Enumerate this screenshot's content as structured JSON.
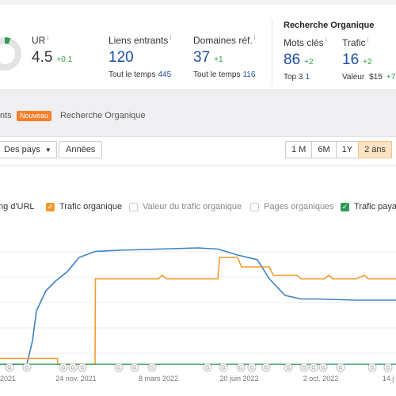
{
  "metrics": {
    "ur": {
      "label": "UR",
      "info": "i",
      "value": "4.5",
      "delta": "+0.1"
    },
    "backlinks": {
      "label": "Liens entrants",
      "info": "i",
      "value": "120",
      "sub_label": "Tout le temps",
      "sub_value": "445"
    },
    "ref_domains": {
      "label": "Domaines réf.",
      "info": "i",
      "value": "37",
      "delta": "+1",
      "sub_label": "Tout le temps",
      "sub_value": "116"
    },
    "organic_title": "Recherche Organique",
    "keywords": {
      "label": "Mots clés",
      "info": "i",
      "value": "86",
      "delta": "+2",
      "sub_label": "Top 3",
      "sub_value": "1"
    },
    "traffic": {
      "label": "Trafic",
      "info": "i",
      "value": "16",
      "delta": "+2",
      "sub_label": "Valeur",
      "sub_value": "$15",
      "sub_delta": "+7"
    }
  },
  "tabs": [
    {
      "label": "nts",
      "badge": "Nouveau"
    },
    {
      "label": "Recherche Organique"
    }
  ],
  "controls": {
    "country_select": "Des pays",
    "years_button": "Années",
    "ranges": [
      "1 M",
      "6M",
      "1Y",
      "2 ans"
    ],
    "active_range": "2 ans"
  },
  "legend": [
    {
      "label": "ng d'URL",
      "checked": null
    },
    {
      "label": "Trafic organique",
      "checked": true,
      "color": "#f39a2f"
    },
    {
      "label": "Valeur du trafic organique",
      "checked": false
    },
    {
      "label": "Pages organiques",
      "checked": false
    },
    {
      "label": "Trafic paya",
      "checked": true,
      "color": "#2e9b55"
    }
  ],
  "chart_data": {
    "type": "line",
    "x_tick_labels": [
      "2021",
      "24 nov. 2021",
      "8 mars 2022",
      "20 juin 2022",
      "2 oct. 2022",
      "14 j"
    ],
    "annotation_markers": [
      "G",
      "G",
      "G",
      "G",
      "G",
      "G",
      "G",
      "G",
      "G",
      "G",
      "G",
      "G",
      "G",
      "G",
      "G",
      "G",
      "G",
      "G",
      "G",
      "G"
    ],
    "colors": {
      "ur": "#3b82c4",
      "organic": "#f39a2f",
      "paid": "#2e9b55"
    },
    "series": [
      {
        "name": "ng d'URL",
        "color": "#3b82c4",
        "points": [
          [
            0,
            0
          ],
          [
            0.034,
            0
          ],
          [
            0.068,
            0
          ],
          [
            0.082,
            0.2
          ],
          [
            0.092,
            0.45
          ],
          [
            0.116,
            0.62
          ],
          [
            0.14,
            0.7
          ],
          [
            0.17,
            0.78
          ],
          [
            0.2,
            0.9
          ],
          [
            0.24,
            0.95
          ],
          [
            0.3,
            0.96
          ],
          [
            0.4,
            0.97
          ],
          [
            0.5,
            0.98
          ],
          [
            0.55,
            0.97
          ],
          [
            0.6,
            0.92
          ],
          [
            0.65,
            0.88
          ],
          [
            0.68,
            0.72
          ],
          [
            0.72,
            0.58
          ],
          [
            0.76,
            0.55
          ],
          [
            0.8,
            0.55
          ],
          [
            0.9,
            0.54
          ],
          [
            1.0,
            0.54
          ]
        ]
      },
      {
        "name": "Trafic organique",
        "color": "#f39a2f",
        "points": [
          [
            0,
            0.05
          ],
          [
            0.145,
            0.05
          ],
          [
            0.146,
            0
          ],
          [
            0.24,
            0
          ],
          [
            0.241,
            0.72
          ],
          [
            0.4,
            0.72
          ],
          [
            0.41,
            0.75
          ],
          [
            0.42,
            0.72
          ],
          [
            0.55,
            0.72
          ],
          [
            0.555,
            0.9
          ],
          [
            0.6,
            0.9
          ],
          [
            0.61,
            0.82
          ],
          [
            0.68,
            0.82
          ],
          [
            0.69,
            0.75
          ],
          [
            0.75,
            0.75
          ],
          [
            0.76,
            0.72
          ],
          [
            0.82,
            0.72
          ],
          [
            0.83,
            0.75
          ],
          [
            0.84,
            0.72
          ],
          [
            0.9,
            0.72
          ],
          [
            0.92,
            0.75
          ],
          [
            0.93,
            0.72
          ],
          [
            1.0,
            0.72
          ]
        ]
      },
      {
        "name": "Trafic paya",
        "color": "#2e9b55",
        "points": [
          [
            0,
            0
          ],
          [
            1,
            0
          ]
        ]
      }
    ]
  }
}
